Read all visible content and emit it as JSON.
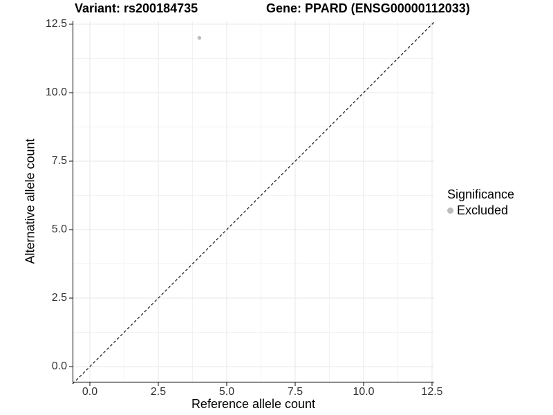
{
  "titles": {
    "variant": "Variant: rs200184735",
    "gene": "Gene: PPARD (ENSG00000112033)"
  },
  "axes": {
    "x": {
      "label": "Reference allele count",
      "ticks": [
        "0.0",
        "2.5",
        "5.0",
        "7.5",
        "10.0",
        "12.5"
      ]
    },
    "y": {
      "label": "Alternative allele count",
      "ticks": [
        "0.0",
        "2.5",
        "5.0",
        "7.5",
        "10.0",
        "12.5"
      ]
    }
  },
  "legend": {
    "title": "Significance",
    "items": [
      {
        "label": "Excluded",
        "color": "#bdbdbd"
      }
    ]
  },
  "colors": {
    "background": "#ffffff",
    "grid_major": "#e7e7e7",
    "grid_minor": "#f2f2f2",
    "axis_line": "#333333",
    "tick_text": "#333333",
    "identity_line": "#111111",
    "excluded_point": "#bdbdbd"
  },
  "chart_data": {
    "type": "scatter",
    "title": "Variant: rs200184735 | Gene: PPARD (ENSG00000112033)",
    "xlabel": "Reference allele count",
    "ylabel": "Alternative allele count",
    "xlim": [
      -0.63,
      12.6
    ],
    "ylim": [
      -0.63,
      12.6
    ],
    "x_ticks": [
      0,
      2.5,
      5,
      7.5,
      10,
      12.5
    ],
    "y_ticks": [
      0,
      2.5,
      5,
      7.5,
      10,
      12.5
    ],
    "minor_ticks": [
      1.25,
      3.75,
      6.25,
      8.75,
      11.25
    ],
    "grid": true,
    "legend_position": "right",
    "series": [
      {
        "name": "Excluded",
        "color": "#bdbdbd",
        "points": [
          {
            "x": 4,
            "y": 12
          }
        ]
      }
    ],
    "reference_line": {
      "type": "identity y=x",
      "style": "dashed",
      "color": "#111111"
    }
  }
}
